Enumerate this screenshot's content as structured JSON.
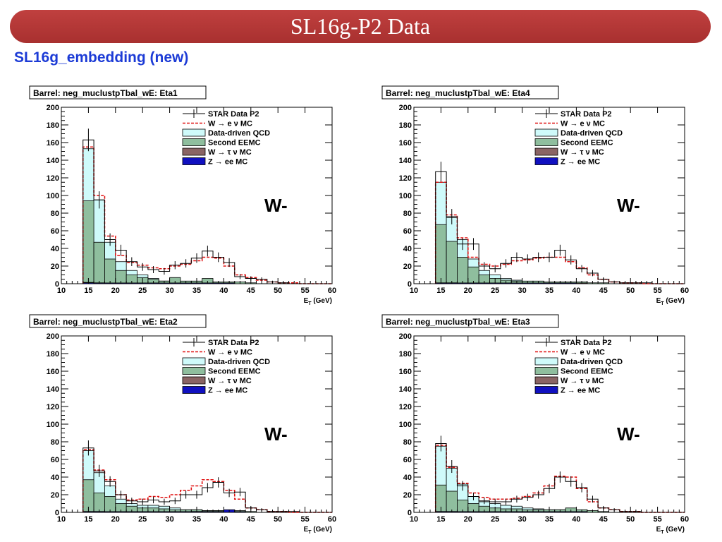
{
  "slide": {
    "title": "SL16g-P2 Data",
    "subtitle": "SL16g_embedding (new)"
  },
  "legend": {
    "data": "STAR Data P2",
    "w_enu": "W → e ν MC",
    "qcd": "Data-driven QCD",
    "eemc": "Second EEMC",
    "w_taunu": "W → τ ν MC",
    "z_ee": "Z → ee MC"
  },
  "colors": {
    "banner": "#b03534",
    "subtitle": "#1c3bd6",
    "qcd_fill": "#cffafa",
    "eemc_fill": "#8fbe9e",
    "w_taunu_fill": "#8a6464",
    "z_ee_fill": "#1010c0",
    "w_enu_line": "#e01010",
    "data_line": "#000000"
  },
  "chart_data": [
    {
      "type": "bar",
      "title": "Barrel: neg_muclustpTbal_wE: Eta1",
      "annotation": "W-",
      "xlabel": "E_T (GeV)",
      "xlim": [
        10,
        60
      ],
      "ylim": [
        0,
        200
      ],
      "xticks": [
        10,
        15,
        20,
        25,
        30,
        35,
        40,
        45,
        50,
        55,
        60
      ],
      "yticks": [
        0,
        20,
        40,
        60,
        80,
        100,
        120,
        140,
        160,
        180,
        200
      ],
      "bin_edges": [
        14,
        16,
        18,
        20,
        22,
        24,
        26,
        28,
        30,
        32,
        34,
        36,
        38,
        40,
        42,
        44,
        46,
        48,
        50,
        52,
        54,
        56,
        58,
        60
      ],
      "series": [
        {
          "name": "STAR Data P2",
          "values": [
            163,
            95,
            50,
            38,
            25,
            19,
            16,
            14,
            21,
            23,
            29,
            37,
            30,
            24,
            8,
            6,
            5,
            2,
            1,
            0,
            0,
            0,
            0
          ]
        },
        {
          "name": "W → e ν MC",
          "values": [
            155,
            100,
            54,
            32,
            24,
            21,
            18,
            17,
            20,
            22,
            26,
            30,
            29,
            20,
            10,
            7,
            4,
            2,
            1,
            1,
            0,
            0,
            0
          ]
        },
        {
          "name": "Data-driven QCD",
          "values": [
            153,
            95,
            47,
            25,
            15,
            10,
            6,
            3,
            2,
            1,
            1,
            1,
            0,
            0,
            0,
            0,
            0,
            0,
            0,
            0,
            0,
            0,
            0
          ]
        },
        {
          "name": "Second EEMC",
          "values": [
            94,
            47,
            28,
            15,
            10,
            7,
            5,
            3,
            7,
            3,
            3,
            6,
            2,
            2,
            2,
            1,
            0,
            0,
            0,
            0,
            0,
            0,
            0
          ]
        },
        {
          "name": "W → τ ν MC",
          "values": [
            1.5,
            1,
            0.5,
            0.5,
            0.5,
            0.5,
            0.5,
            0.5,
            0.5,
            0.5,
            0.5,
            0.5,
            0.5,
            0.5,
            0,
            0,
            0,
            0,
            0,
            0,
            0,
            0,
            0
          ]
        },
        {
          "name": "Z → ee MC",
          "values": [
            1,
            0.5,
            0.5,
            0.5,
            0.5,
            0.5,
            0.5,
            0.5,
            0.5,
            0.5,
            0.5,
            0.5,
            0.5,
            0.5,
            0,
            0,
            0,
            0,
            0,
            0,
            0,
            0,
            0
          ]
        }
      ]
    },
    {
      "type": "bar",
      "title": "Barrel: neg_muclustpTbal_wE: Eta4",
      "annotation": "W-",
      "xlabel": "E_T (GeV)",
      "xlim": [
        10,
        60
      ],
      "ylim": [
        0,
        200
      ],
      "xticks": [
        10,
        15,
        20,
        25,
        30,
        35,
        40,
        45,
        50,
        55,
        60
      ],
      "yticks": [
        0,
        20,
        40,
        60,
        80,
        100,
        120,
        140,
        160,
        180,
        200
      ],
      "bin_edges": [
        14,
        16,
        18,
        20,
        22,
        24,
        26,
        28,
        30,
        32,
        34,
        36,
        38,
        40,
        42,
        44,
        46,
        48,
        50,
        52,
        54,
        56,
        58,
        60
      ],
      "series": [
        {
          "name": "STAR Data P2",
          "values": [
            127,
            76,
            45,
            45,
            20,
            17,
            23,
            30,
            28,
            30,
            30,
            38,
            27,
            17,
            12,
            5,
            2,
            1,
            1,
            1,
            0,
            0,
            0
          ]
        },
        {
          "name": "W → e ν MC",
          "values": [
            115,
            78,
            52,
            30,
            22,
            20,
            22,
            26,
            27,
            29,
            30,
            30,
            25,
            18,
            10,
            5,
            2,
            1,
            1,
            0,
            0,
            0,
            0
          ]
        },
        {
          "name": "Data-driven QCD",
          "values": [
            115,
            75,
            50,
            28,
            15,
            10,
            6,
            4,
            2,
            1,
            1,
            1,
            0,
            0,
            0,
            0,
            0,
            0,
            0,
            0,
            0,
            0,
            0
          ]
        },
        {
          "name": "Second EEMC",
          "values": [
            67,
            48,
            30,
            19,
            10,
            6,
            4,
            3,
            3,
            3,
            2,
            2,
            2,
            2,
            1,
            1,
            0,
            0,
            0,
            0,
            0,
            0,
            0
          ]
        },
        {
          "name": "W → τ ν MC",
          "values": [
            1,
            1,
            0.5,
            0.5,
            0.5,
            0.5,
            0.5,
            0.5,
            0.5,
            0.5,
            0.5,
            0.5,
            0.5,
            0.5,
            0,
            0,
            0,
            0,
            0,
            0,
            0,
            0,
            0
          ]
        },
        {
          "name": "Z → ee MC",
          "values": [
            0.5,
            0.5,
            0.5,
            0.5,
            0.5,
            0.5,
            0.5,
            0.5,
            0.5,
            0.5,
            0.5,
            0.5,
            0.5,
            0,
            0,
            0,
            0,
            0,
            0,
            0,
            0,
            0,
            0
          ]
        }
      ]
    },
    {
      "type": "bar",
      "title": "Barrel: neg_muclustpTbal_wE: Eta2",
      "annotation": "W-",
      "xlabel": "E_T (GeV)",
      "xlim": [
        10,
        60
      ],
      "ylim": [
        0,
        200
      ],
      "xticks": [
        10,
        15,
        20,
        25,
        30,
        35,
        40,
        45,
        50,
        55,
        60
      ],
      "yticks": [
        0,
        20,
        40,
        60,
        80,
        100,
        120,
        140,
        160,
        180,
        200
      ],
      "bin_edges": [
        14,
        16,
        18,
        20,
        22,
        24,
        26,
        28,
        30,
        32,
        34,
        36,
        38,
        40,
        42,
        44,
        46,
        48,
        50,
        52,
        54,
        56,
        58,
        60
      ],
      "series": [
        {
          "name": "STAR Data P2",
          "values": [
            73,
            47,
            35,
            20,
            13,
            12,
            14,
            12,
            13,
            20,
            20,
            28,
            34,
            22,
            23,
            5,
            3,
            1,
            1,
            1,
            0,
            0,
            0
          ]
        },
        {
          "name": "W → e ν MC",
          "values": [
            71,
            48,
            37,
            20,
            14,
            15,
            18,
            17,
            20,
            25,
            30,
            37,
            35,
            25,
            15,
            5,
            3,
            1,
            1,
            0,
            0,
            0,
            0
          ]
        },
        {
          "name": "Data-driven QCD",
          "values": [
            70,
            45,
            30,
            15,
            10,
            8,
            8,
            7,
            5,
            3,
            3,
            2,
            2,
            1,
            1,
            0,
            0,
            0,
            0,
            0,
            0,
            0,
            0
          ]
        },
        {
          "name": "Second EEMC",
          "values": [
            37,
            22,
            18,
            10,
            7,
            5,
            5,
            4,
            3,
            3,
            3,
            2,
            2,
            2,
            2,
            1,
            0,
            0,
            0,
            0,
            0,
            0,
            0
          ]
        },
        {
          "name": "W → τ ν MC",
          "values": [
            1,
            1,
            0.5,
            0.5,
            0.5,
            0.5,
            0.5,
            0.5,
            0.5,
            0.5,
            1,
            1,
            1,
            1,
            0.5,
            0,
            0,
            0,
            0,
            0,
            0,
            0,
            0
          ]
        },
        {
          "name": "Z → ee MC",
          "values": [
            0.5,
            0.5,
            0.5,
            0.5,
            0.5,
            0.5,
            0.5,
            0.5,
            0.5,
            0.5,
            0.5,
            0.5,
            0.5,
            3,
            0.5,
            0,
            0,
            0,
            0,
            0,
            0,
            0,
            0
          ]
        }
      ]
    },
    {
      "type": "bar",
      "title": "Barrel: neg_muclustpTbal_wE: Eta3",
      "annotation": "W-",
      "xlabel": "E_T (GeV)",
      "xlim": [
        10,
        60
      ],
      "ylim": [
        0,
        200
      ],
      "xticks": [
        10,
        15,
        20,
        25,
        30,
        35,
        40,
        45,
        50,
        55,
        60
      ],
      "yticks": [
        0,
        20,
        40,
        60,
        80,
        100,
        120,
        140,
        160,
        180,
        200
      ],
      "bin_edges": [
        14,
        16,
        18,
        20,
        22,
        24,
        26,
        28,
        30,
        32,
        34,
        36,
        38,
        40,
        42,
        44,
        46,
        48,
        50,
        52,
        54,
        56,
        58,
        60
      ],
      "series": [
        {
          "name": "STAR Data P2",
          "values": [
            78,
            52,
            30,
            18,
            13,
            12,
            12,
            15,
            17,
            20,
            27,
            40,
            35,
            28,
            15,
            5,
            3,
            1,
            1,
            0,
            0,
            0,
            0
          ]
        },
        {
          "name": "W → e ν MC",
          "values": [
            76,
            51,
            33,
            22,
            17,
            15,
            15,
            16,
            18,
            22,
            30,
            41,
            40,
            27,
            12,
            5,
            3,
            1,
            1,
            0,
            0,
            0,
            0
          ]
        },
        {
          "name": "Data-driven QCD",
          "values": [
            75,
            50,
            32,
            18,
            12,
            10,
            8,
            7,
            5,
            4,
            3,
            3,
            2,
            2,
            1,
            0,
            0,
            0,
            0,
            0,
            0,
            0,
            0
          ]
        },
        {
          "name": "Second EEMC",
          "values": [
            31,
            24,
            14,
            10,
            7,
            5,
            4,
            4,
            3,
            3,
            3,
            3,
            5,
            3,
            2,
            1,
            0,
            0,
            0,
            0,
            0,
            0,
            0
          ]
        },
        {
          "name": "W → τ ν MC",
          "values": [
            1,
            1,
            0.5,
            0.5,
            0.5,
            0.5,
            0.5,
            0.5,
            0.5,
            0.5,
            0.5,
            0.5,
            0.5,
            0.5,
            0,
            0,
            0,
            0,
            0,
            0,
            0,
            0,
            0
          ]
        },
        {
          "name": "Z → ee MC",
          "values": [
            0.5,
            0.5,
            0.5,
            0.5,
            0.5,
            0.5,
            0.5,
            0.5,
            0.5,
            0.5,
            0.5,
            0.5,
            0.5,
            0.5,
            0,
            0,
            0,
            0,
            0,
            0,
            0,
            0,
            0
          ]
        }
      ]
    }
  ]
}
